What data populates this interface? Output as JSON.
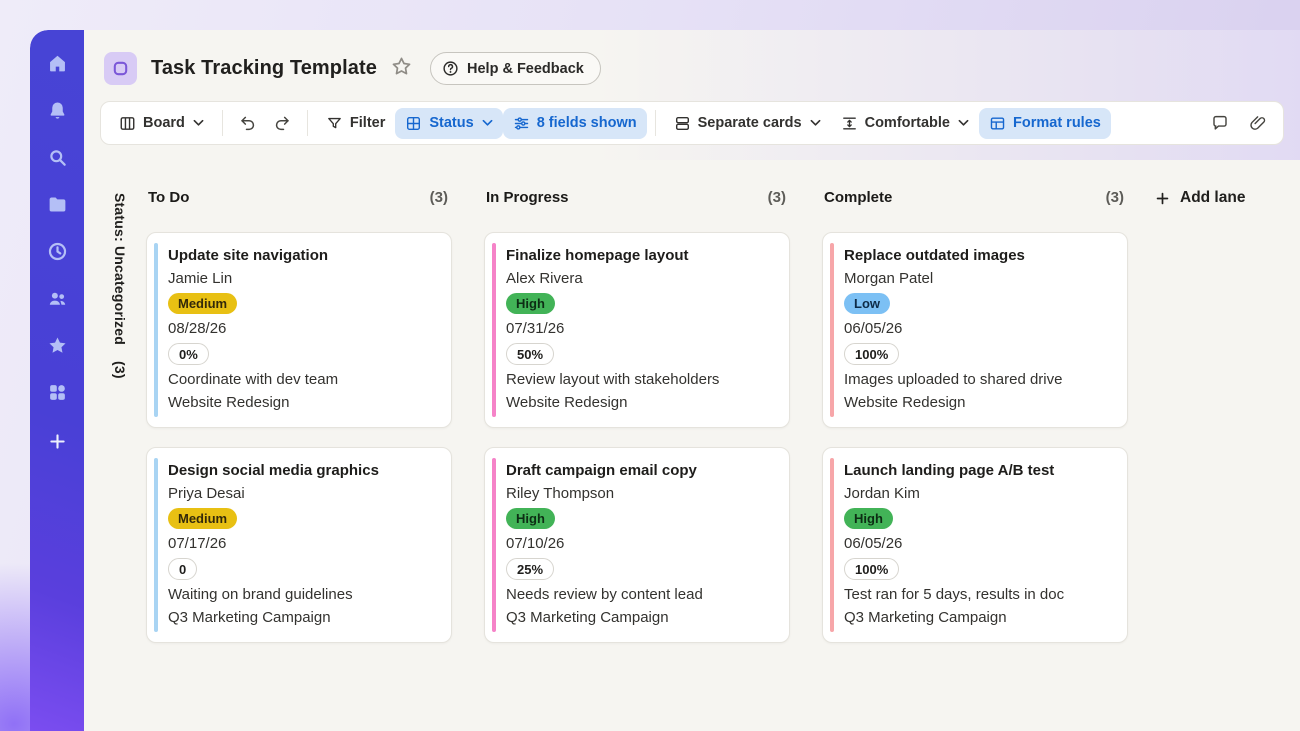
{
  "app": {
    "title": "Task Tracking Template",
    "help_label": "Help & Feedback"
  },
  "sidebar": {
    "items": [
      {
        "name": "home"
      },
      {
        "name": "notifications"
      },
      {
        "name": "search"
      },
      {
        "name": "files"
      },
      {
        "name": "recent"
      },
      {
        "name": "shared"
      },
      {
        "name": "favorites"
      },
      {
        "name": "apps"
      },
      {
        "name": "add"
      }
    ]
  },
  "toolbar": {
    "board": "Board",
    "filter": "Filter",
    "status": "Status",
    "fields": "8 fields shown",
    "separate": "Separate cards",
    "density": "Comfortable",
    "format_rules": "Format rules"
  },
  "board": {
    "group_label": "Status: Uncategorized",
    "group_count": "(3)",
    "add_lane": "Add lane",
    "lanes": [
      {
        "title": "To Do",
        "count": "(3)",
        "accent": "#a9d4f3",
        "cards": [
          {
            "title": "Update site navigation",
            "assignee": "Jamie Lin",
            "priority": "Medium",
            "date": "08/28/26",
            "progress": "0%",
            "note": "Coordinate with dev team",
            "project": "Website Redesign"
          },
          {
            "title": "Design social media graphics",
            "assignee": "Priya Desai",
            "priority": "Medium",
            "date": "07/17/26",
            "progress": "0",
            "note": "Waiting on brand guidelines",
            "project": "Q3 Marketing Campaign"
          }
        ]
      },
      {
        "title": "In Progress",
        "count": "(3)",
        "accent": "#f583c8",
        "cards": [
          {
            "title": "Finalize homepage layout",
            "assignee": "Alex Rivera",
            "priority": "High",
            "date": "07/31/26",
            "progress": "50%",
            "note": "Review layout with stakeholders",
            "project": "Website Redesign"
          },
          {
            "title": "Draft campaign email copy",
            "assignee": "Riley Thompson",
            "priority": "High",
            "date": "07/10/26",
            "progress": "25%",
            "note": "Needs review by content lead",
            "project": "Q3 Marketing Campaign"
          }
        ]
      },
      {
        "title": "Complete",
        "count": "(3)",
        "accent": "#f7a6a9",
        "cards": [
          {
            "title": "Replace outdated images",
            "assignee": "Morgan Patel",
            "priority": "Low",
            "date": "06/05/26",
            "progress": "100%",
            "note": "Images uploaded to shared drive",
            "project": "Website Redesign"
          },
          {
            "title": "Launch landing page A/B test",
            "assignee": "Jordan Kim",
            "priority": "High",
            "date": "06/05/26",
            "progress": "100%",
            "note": "Test ran for 5 days, results in doc",
            "project": "Q3 Marketing Campaign"
          }
        ]
      }
    ]
  },
  "priority_colors": {
    "Medium": {
      "bg": "#e8c013",
      "fg": "#33290a"
    },
    "High": {
      "bg": "#42b357",
      "fg": "#0d2d14"
    },
    "Low": {
      "bg": "#7cc0f4",
      "fg": "#0d2b47"
    }
  },
  "colors": {
    "sidebar": "#4a42d6",
    "toolbar_chip_bg": "#d7e6f8",
    "toolbar_chip_fg": "#1667cf"
  }
}
